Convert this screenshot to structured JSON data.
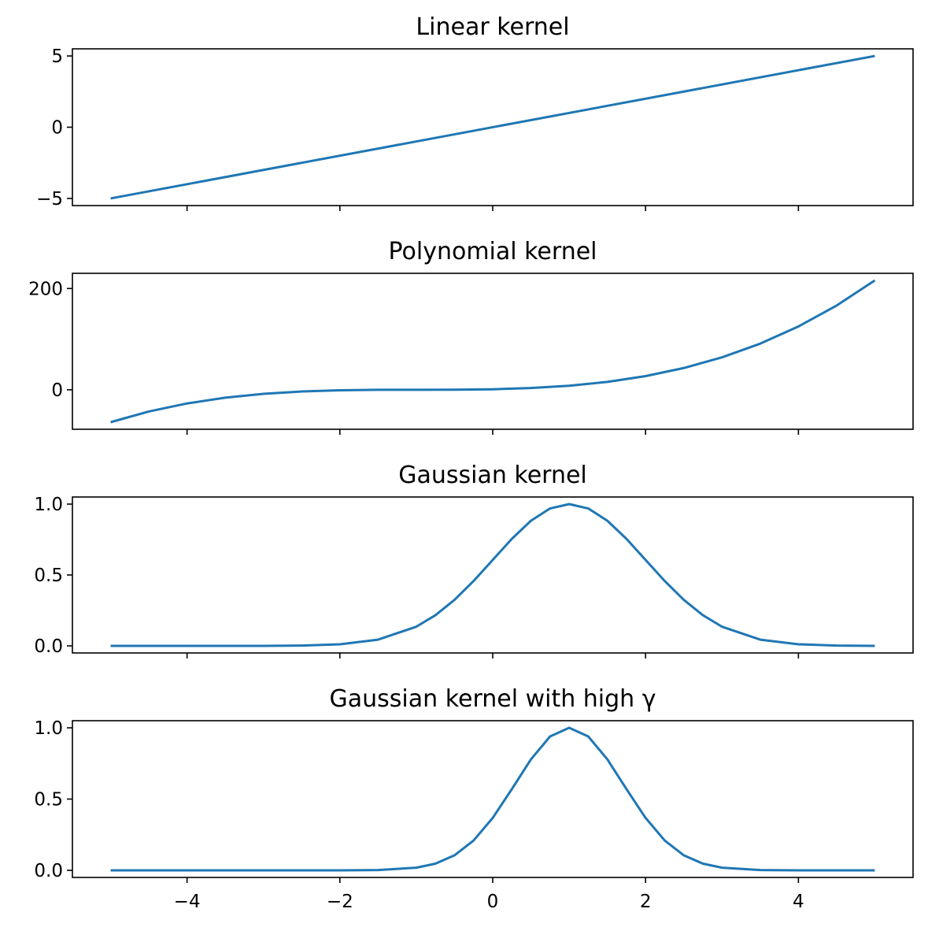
{
  "colors": {
    "series": "#1f77b4",
    "axes": "#000000",
    "background": "#ffffff"
  },
  "chart_data": [
    {
      "type": "line",
      "title": "Linear kernel",
      "xlabel": "",
      "ylabel": "",
      "xlim": [
        -5.5,
        5.5
      ],
      "ylim": [
        -5.5,
        5.5
      ],
      "x_ticks": [
        -4,
        -2,
        0,
        2,
        4
      ],
      "x_tick_labels_visible": false,
      "y_ticks": [
        -5,
        0,
        5
      ],
      "y_tick_labels": [
        "−5",
        "0",
        "5"
      ],
      "grid": false,
      "series": [
        {
          "x": [
            -5,
            5
          ],
          "y": [
            -5,
            5
          ]
        }
      ]
    },
    {
      "type": "line",
      "title": "Polynomial kernel",
      "xlabel": "",
      "ylabel": "",
      "xlim": [
        -5.5,
        5.5
      ],
      "ylim": [
        -78,
        230
      ],
      "x_ticks": [
        -4,
        -2,
        0,
        2,
        4
      ],
      "x_tick_labels_visible": false,
      "y_ticks": [
        0,
        200
      ],
      "y_tick_labels": [
        "0",
        "200"
      ],
      "grid": false,
      "series": [
        {
          "x": [
            -5,
            -4.5,
            -4,
            -3.5,
            -3,
            -2.5,
            -2,
            -1.5,
            -1,
            -0.5,
            0,
            0.5,
            1,
            1.5,
            2,
            2.5,
            3,
            3.5,
            4,
            4.5,
            5
          ],
          "y": [
            -64,
            -42.9,
            -27,
            -15.6,
            -8,
            -3.4,
            -1,
            -0.1,
            0,
            0.1,
            1,
            3.4,
            8,
            15.6,
            27,
            42.9,
            64,
            91.1,
            125,
            166.4,
            216
          ]
        }
      ]
    },
    {
      "type": "line",
      "title": "Gaussian kernel",
      "xlabel": "",
      "ylabel": "",
      "xlim": [
        -5.5,
        5.5
      ],
      "ylim": [
        -0.05,
        1.05
      ],
      "x_ticks": [
        -4,
        -2,
        0,
        2,
        4
      ],
      "x_tick_labels_visible": false,
      "y_ticks": [
        0,
        0.5,
        1
      ],
      "y_tick_labels": [
        "0.0",
        "0.5",
        "1.0"
      ],
      "grid": false,
      "series": [
        {
          "x": [
            -5,
            -4.5,
            -4,
            -3.5,
            -3,
            -2.5,
            -2,
            -1.5,
            -1,
            -0.75,
            -0.5,
            -0.25,
            0,
            0.25,
            0.5,
            0.75,
            1,
            1.25,
            1.5,
            1.75,
            2,
            2.25,
            2.5,
            2.75,
            3,
            3.5,
            4,
            4.5,
            5
          ],
          "y": [
            0,
            0,
            0,
            0,
            0.0003,
            0.0022,
            0.0111,
            0.0439,
            0.1353,
            0.2163,
            0.3247,
            0.4578,
            0.6065,
            0.7548,
            0.8825,
            0.9692,
            1,
            0.9692,
            0.8825,
            0.7548,
            0.6065,
            0.4578,
            0.3247,
            0.2163,
            0.1353,
            0.0439,
            0.0111,
            0.0022,
            0.0003
          ]
        }
      ]
    },
    {
      "type": "line",
      "title": "Gaussian kernel with high γ",
      "xlabel": "",
      "ylabel": "",
      "xlim": [
        -5.5,
        5.5
      ],
      "ylim": [
        -0.05,
        1.05
      ],
      "x_ticks": [
        -4,
        -2,
        0,
        2,
        4
      ],
      "x_tick_labels": [
        "−4",
        "−2",
        "0",
        "2",
        "4"
      ],
      "y_ticks": [
        0,
        0.5,
        1
      ],
      "y_tick_labels": [
        "0.0",
        "0.5",
        "1.0"
      ],
      "grid": false,
      "series": [
        {
          "x": [
            -5,
            -4,
            -3,
            -2,
            -1.5,
            -1,
            -0.75,
            -0.5,
            -0.25,
            0,
            0.25,
            0.5,
            0.75,
            1,
            1.25,
            1.5,
            1.75,
            2,
            2.25,
            2.5,
            2.75,
            3,
            3.5,
            4,
            5
          ],
          "y": [
            0,
            0,
            0,
            0,
            0.0019,
            0.0183,
            0.0468,
            0.1054,
            0.2096,
            0.3679,
            0.5698,
            0.7788,
            0.9394,
            1,
            0.9394,
            0.7788,
            0.5698,
            0.3679,
            0.2096,
            0.1054,
            0.0468,
            0.0183,
            0.0019,
            0,
            0
          ]
        }
      ]
    }
  ]
}
